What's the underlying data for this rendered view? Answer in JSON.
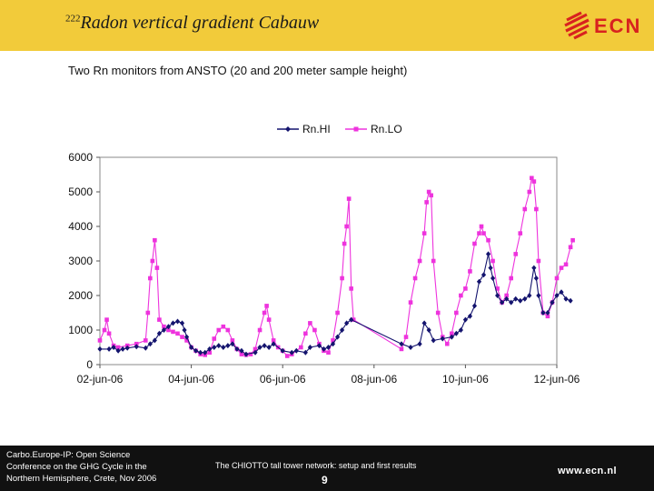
{
  "header": {
    "title_sup": "222",
    "title_text": "Radon vertical gradient Cabauw",
    "logo_text": "ECN"
  },
  "subtitle": "Two Rn monitors from ANSTO (20 and 200 meter sample height)",
  "colors": {
    "header_bg": "#f2cb3a",
    "footer_bg": "#111111",
    "logo_red": "#d8221f",
    "rnhi": "#14146e",
    "rnlo": "#ee33dd"
  },
  "chart_data": {
    "type": "line",
    "title": "",
    "xlabel": "",
    "ylabel": "",
    "ylim": [
      0,
      6000
    ],
    "yticks": [
      "0",
      "1000",
      "2000",
      "3000",
      "4000",
      "5000",
      "6000"
    ],
    "xticks": [
      "02-jun-06",
      "04-jun-06",
      "06-jun-06",
      "08-jun-06",
      "10-jun-06",
      "12-jun-06"
    ],
    "xlim_days": [
      2,
      12
    ],
    "legend_position": "top",
    "series": [
      {
        "name": "Rn.HI",
        "color": "#14146e",
        "marker": "diamond",
        "points": [
          [
            2.0,
            450
          ],
          [
            2.2,
            450
          ],
          [
            2.3,
            500
          ],
          [
            2.4,
            400
          ],
          [
            2.5,
            450
          ],
          [
            2.6,
            480
          ],
          [
            2.8,
            520
          ],
          [
            3.0,
            480
          ],
          [
            3.1,
            600
          ],
          [
            3.2,
            700
          ],
          [
            3.3,
            900
          ],
          [
            3.4,
            1000
          ],
          [
            3.5,
            1100
          ],
          [
            3.6,
            1200
          ],
          [
            3.7,
            1250
          ],
          [
            3.8,
            1200
          ],
          [
            3.85,
            1000
          ],
          [
            3.9,
            800
          ],
          [
            4.0,
            500
          ],
          [
            4.1,
            400
          ],
          [
            4.2,
            350
          ],
          [
            4.3,
            350
          ],
          [
            4.4,
            450
          ],
          [
            4.5,
            500
          ],
          [
            4.6,
            550
          ],
          [
            4.7,
            500
          ],
          [
            4.8,
            550
          ],
          [
            4.9,
            600
          ],
          [
            5.0,
            450
          ],
          [
            5.1,
            400
          ],
          [
            5.2,
            300
          ],
          [
            5.4,
            350
          ],
          [
            5.5,
            500
          ],
          [
            5.6,
            550
          ],
          [
            5.7,
            500
          ],
          [
            5.8,
            600
          ],
          [
            6.0,
            400
          ],
          [
            6.2,
            350
          ],
          [
            6.3,
            400
          ],
          [
            6.5,
            350
          ],
          [
            6.6,
            500
          ],
          [
            6.8,
            550
          ],
          [
            6.9,
            450
          ],
          [
            7.0,
            500
          ],
          [
            7.1,
            600
          ],
          [
            7.2,
            800
          ],
          [
            7.3,
            1000
          ],
          [
            7.4,
            1200
          ],
          [
            7.5,
            1300
          ],
          [
            8.6,
            600
          ],
          [
            8.8,
            500
          ],
          [
            9.0,
            600
          ],
          [
            9.1,
            1200
          ],
          [
            9.2,
            1000
          ],
          [
            9.3,
            700
          ],
          [
            9.5,
            750
          ],
          [
            9.7,
            800
          ],
          [
            9.8,
            900
          ],
          [
            9.9,
            1000
          ],
          [
            10.0,
            1300
          ],
          [
            10.1,
            1400
          ],
          [
            10.2,
            1700
          ],
          [
            10.3,
            2400
          ],
          [
            10.4,
            2600
          ],
          [
            10.5,
            3200
          ],
          [
            10.55,
            2800
          ],
          [
            10.6,
            2500
          ],
          [
            10.7,
            2000
          ],
          [
            10.8,
            1800
          ],
          [
            10.9,
            1900
          ],
          [
            11.0,
            1800
          ],
          [
            11.1,
            1900
          ],
          [
            11.2,
            1850
          ],
          [
            11.3,
            1900
          ],
          [
            11.4,
            2000
          ],
          [
            11.5,
            2800
          ],
          [
            11.55,
            2500
          ],
          [
            11.6,
            2000
          ],
          [
            11.7,
            1500
          ],
          [
            11.8,
            1500
          ],
          [
            11.9,
            1800
          ],
          [
            12.0,
            2000
          ],
          [
            12.1,
            2100
          ],
          [
            12.2,
            1900
          ],
          [
            12.3,
            1850
          ]
        ]
      },
      {
        "name": "Rn.LO",
        "color": "#ee33dd",
        "marker": "square",
        "points": [
          [
            2.0,
            700
          ],
          [
            2.1,
            1000
          ],
          [
            2.15,
            1300
          ],
          [
            2.2,
            900
          ],
          [
            2.3,
            550
          ],
          [
            2.4,
            500
          ],
          [
            2.6,
            550
          ],
          [
            2.8,
            600
          ],
          [
            3.0,
            700
          ],
          [
            3.05,
            1500
          ],
          [
            3.1,
            2500
          ],
          [
            3.15,
            3000
          ],
          [
            3.2,
            3600
          ],
          [
            3.25,
            2800
          ],
          [
            3.3,
            1300
          ],
          [
            3.4,
            1100
          ],
          [
            3.5,
            1000
          ],
          [
            3.6,
            950
          ],
          [
            3.7,
            900
          ],
          [
            3.8,
            800
          ],
          [
            3.9,
            700
          ],
          [
            4.0,
            500
          ],
          [
            4.1,
            400
          ],
          [
            4.2,
            300
          ],
          [
            4.3,
            280
          ],
          [
            4.4,
            350
          ],
          [
            4.5,
            750
          ],
          [
            4.6,
            1000
          ],
          [
            4.7,
            1100
          ],
          [
            4.8,
            1000
          ],
          [
            4.9,
            700
          ],
          [
            5.0,
            450
          ],
          [
            5.1,
            300
          ],
          [
            5.2,
            280
          ],
          [
            5.3,
            300
          ],
          [
            5.4,
            450
          ],
          [
            5.5,
            1000
          ],
          [
            5.6,
            1500
          ],
          [
            5.65,
            1700
          ],
          [
            5.7,
            1300
          ],
          [
            5.8,
            700
          ],
          [
            5.9,
            500
          ],
          [
            6.0,
            400
          ],
          [
            6.1,
            250
          ],
          [
            6.2,
            300
          ],
          [
            6.4,
            500
          ],
          [
            6.5,
            900
          ],
          [
            6.6,
            1200
          ],
          [
            6.7,
            1000
          ],
          [
            6.8,
            600
          ],
          [
            6.9,
            400
          ],
          [
            7.0,
            350
          ],
          [
            7.1,
            700
          ],
          [
            7.2,
            1500
          ],
          [
            7.3,
            2500
          ],
          [
            7.35,
            3500
          ],
          [
            7.4,
            4000
          ],
          [
            7.45,
            4800
          ],
          [
            7.5,
            2200
          ],
          [
            7.55,
            1300
          ],
          [
            8.6,
            450
          ],
          [
            8.7,
            800
          ],
          [
            8.8,
            1800
          ],
          [
            8.9,
            2500
          ],
          [
            9.0,
            3000
          ],
          [
            9.1,
            3800
          ],
          [
            9.15,
            4700
          ],
          [
            9.2,
            5000
          ],
          [
            9.25,
            4900
          ],
          [
            9.3,
            3000
          ],
          [
            9.4,
            1500
          ],
          [
            9.5,
            800
          ],
          [
            9.6,
            600
          ],
          [
            9.7,
            900
          ],
          [
            9.8,
            1500
          ],
          [
            9.9,
            2000
          ],
          [
            10.0,
            2200
          ],
          [
            10.1,
            2700
          ],
          [
            10.2,
            3500
          ],
          [
            10.3,
            3800
          ],
          [
            10.35,
            4000
          ],
          [
            10.4,
            3800
          ],
          [
            10.5,
            3600
          ],
          [
            10.6,
            3000
          ],
          [
            10.7,
            2200
          ],
          [
            10.8,
            1800
          ],
          [
            10.9,
            2000
          ],
          [
            11.0,
            2500
          ],
          [
            11.1,
            3200
          ],
          [
            11.2,
            3800
          ],
          [
            11.3,
            4500
          ],
          [
            11.4,
            5000
          ],
          [
            11.45,
            5400
          ],
          [
            11.5,
            5300
          ],
          [
            11.55,
            4500
          ],
          [
            11.6,
            3000
          ],
          [
            11.7,
            1500
          ],
          [
            11.8,
            1400
          ],
          [
            11.9,
            1800
          ],
          [
            12.0,
            2500
          ],
          [
            12.1,
            2800
          ],
          [
            12.2,
            2900
          ],
          [
            12.3,
            3400
          ],
          [
            12.35,
            3600
          ]
        ]
      }
    ]
  },
  "footer": {
    "left_line1": "Carbo.Europe-IP: Open Science",
    "left_line2": "Conference on the GHG Cycle in the",
    "left_line3": "Northern Hemisphere, Crete, Nov 2006",
    "center": "The CHIOTTO tall tower network: setup and first results",
    "page": "9",
    "url": "www.ecn.nl"
  }
}
